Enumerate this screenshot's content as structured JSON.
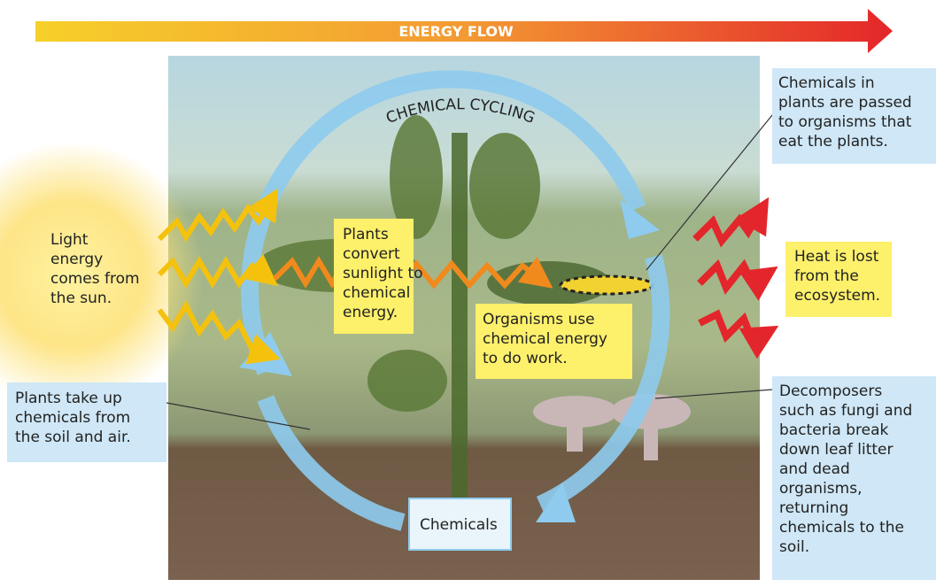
{
  "header": {
    "title": "ENERGY FLOW"
  },
  "cycle": {
    "title": "CHEMICAL CYCLING"
  },
  "labels": {
    "sun": [
      "Light",
      "energy",
      "comes from",
      "the sun."
    ],
    "plants_convert": [
      "Plants",
      "convert",
      "sunlight to",
      "chemical",
      "energy."
    ],
    "organisms_use": [
      "Organisms use",
      "chemical energy",
      "to do work."
    ],
    "chemicals_passed": [
      "Chemicals in",
      "plants are passed",
      "to organisms that",
      "eat the plants."
    ],
    "heat_lost": [
      "Heat is lost",
      "from the",
      "ecosystem."
    ],
    "plants_take_up": [
      "Plants take up",
      "chemicals from",
      "the soil and air."
    ],
    "decomposers": [
      "Decomposers",
      "such as fungi and",
      "bacteria break",
      "down leaf litter",
      "and dead",
      "organisms,",
      "returning",
      "chemicals to the",
      "soil."
    ],
    "chemicals": [
      "Chemicals"
    ]
  }
}
